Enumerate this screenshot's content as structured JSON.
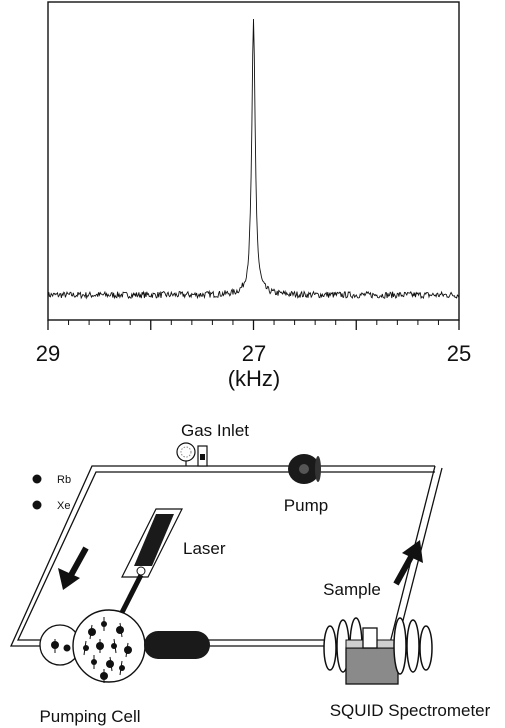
{
  "chart_data": {
    "type": "line",
    "x_axis": {
      "ticks": [
        "29",
        "27",
        "25"
      ],
      "label": "(kHz)",
      "range": [
        29,
        25
      ],
      "reversed": true
    },
    "peak": {
      "center_khz": 27.0,
      "height_relative": 1.0,
      "baseline_relative": 0.0
    },
    "noise_amplitude_relative": 0.012,
    "grid": false,
    "frame": "box"
  },
  "diagram": {
    "legend": [
      {
        "label": "Rb",
        "marker": "filled-dot"
      },
      {
        "label": "Xe",
        "marker": "filled-dot"
      }
    ],
    "labels": {
      "gas_inlet": "Gas Inlet",
      "pump": "Pump",
      "laser": "Laser",
      "sample": "Sample",
      "pumping_cell": "Pumping Cell",
      "squid": "SQUID Spectrometer"
    },
    "colors": {
      "ink": "#111111",
      "fill_dark": "#1a1a1a",
      "fill_grey": "#8a8a8a"
    }
  }
}
